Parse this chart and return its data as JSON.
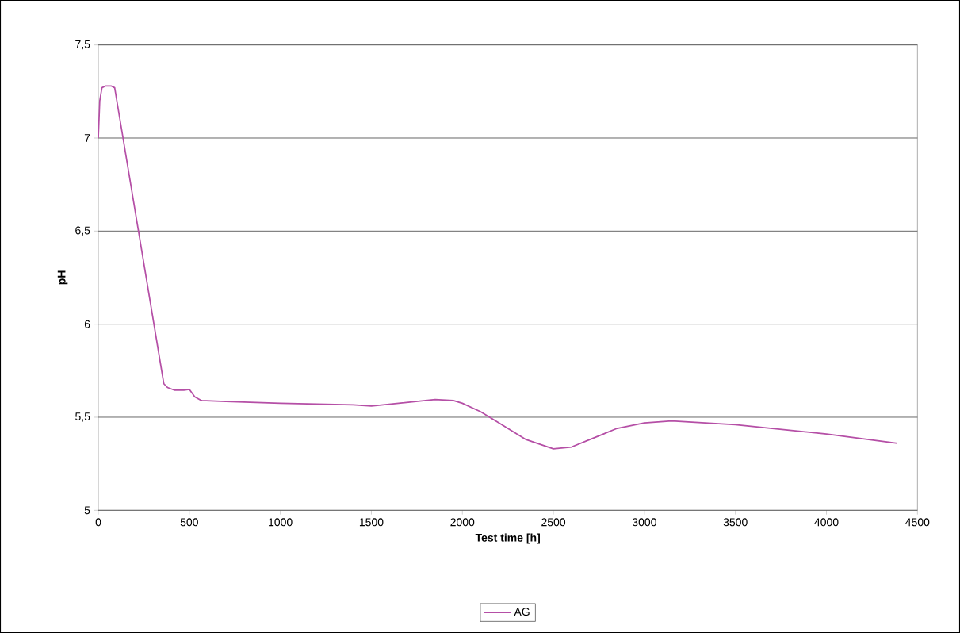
{
  "chart_data": {
    "type": "line",
    "xlabel": "Test time [h]",
    "ylabel": "pH",
    "xlim": [
      0,
      4500
    ],
    "xticks": [
      0,
      500,
      1000,
      1500,
      2000,
      2500,
      3000,
      3500,
      4000,
      4500
    ],
    "ylim": [
      5,
      7.5
    ],
    "yticks": [
      {
        "value": 5,
        "label": "5"
      },
      {
        "value": 5.5,
        "label": "5,5"
      },
      {
        "value": 6,
        "label": "6"
      },
      {
        "value": 6.5,
        "label": "6,5"
      },
      {
        "value": 7,
        "label": "7"
      },
      {
        "value": 7.5,
        "label": "7,5"
      }
    ],
    "grid": "y",
    "legend": "bottom",
    "marker": "none",
    "line_style": "solid",
    "series": [
      {
        "name": "AG",
        "color": "#b54fa6",
        "x": [
          0,
          8,
          20,
          40,
          70,
          90,
          360,
          380,
          420,
          470,
          500,
          530,
          565,
          700,
          1000,
          1400,
          1500,
          1650,
          1850,
          1950,
          2000,
          2100,
          2200,
          2350,
          2500,
          2600,
          2700,
          2850,
          3000,
          3150,
          3500,
          4000,
          4390
        ],
        "values": [
          7.0,
          7.2,
          7.27,
          7.28,
          7.28,
          7.27,
          5.68,
          5.66,
          5.645,
          5.645,
          5.65,
          5.61,
          5.59,
          5.585,
          5.575,
          5.567,
          5.56,
          5.575,
          5.595,
          5.59,
          5.575,
          5.53,
          5.47,
          5.38,
          5.33,
          5.34,
          5.38,
          5.44,
          5.47,
          5.48,
          5.46,
          5.41,
          5.36
        ]
      }
    ]
  }
}
